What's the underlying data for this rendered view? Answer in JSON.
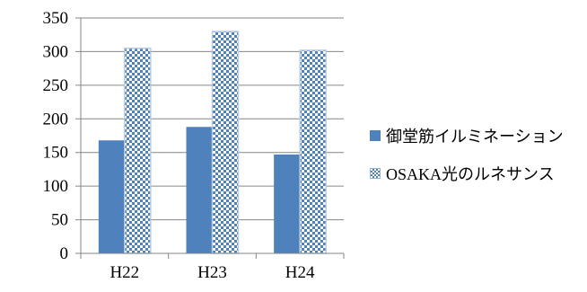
{
  "chart_data": {
    "type": "bar",
    "categories": [
      "H22",
      "H23",
      "H24"
    ],
    "series": [
      {
        "name": "御堂筋イルミネーション",
        "values": [
          168,
          188,
          147
        ],
        "color": "#4f81bd",
        "pattern": "solid"
      },
      {
        "name": "OSAKA光のルネサンス",
        "values": [
          305,
          330,
          302
        ],
        "color": "#4f81bd",
        "pattern": "checkerboard"
      }
    ],
    "ylim": [
      0,
      350
    ],
    "yticks": [
      "0",
      "50",
      "100",
      "150",
      "200",
      "250",
      "300",
      "350"
    ],
    "grid": true,
    "legend_position": "right",
    "title": "",
    "xlabel": "",
    "ylabel": ""
  }
}
